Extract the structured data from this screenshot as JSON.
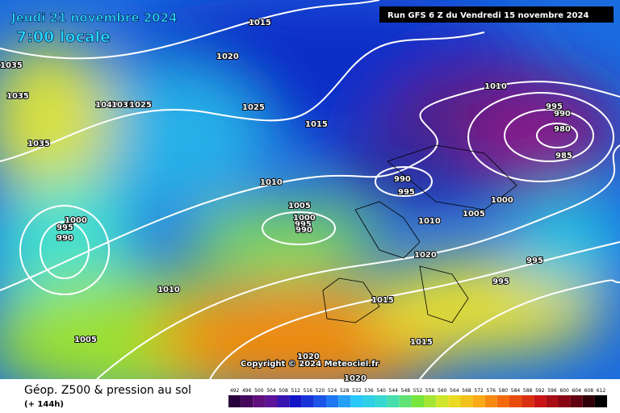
{
  "header": {
    "date": "Jeudi 21 novembre 2024",
    "time": "7:00 locale",
    "run": "Run GFS 6 Z du Vendredi 15 novembre 2024"
  },
  "isobars": [
    "1015",
    "1020",
    "1035",
    "1035",
    "1040",
    "1035",
    "1025",
    "1025",
    "1035",
    "1015",
    "1010",
    "995",
    "990",
    "980",
    "985",
    "990",
    "995",
    "1010",
    "1005",
    "1000",
    "995",
    "990",
    "1000",
    "1005",
    "1010",
    "1020",
    "995",
    "995",
    "1000",
    "995",
    "990",
    "1010",
    "1015",
    "1005",
    "1015",
    "1020",
    "1020"
  ],
  "copyright": "Copyright © 2024 Meteociel.fr",
  "footer": {
    "title": "Géop. Z500 & pression au sol",
    "step": "(+ 144h)"
  },
  "scale": [
    492,
    496,
    500,
    504,
    508,
    512,
    516,
    520,
    524,
    528,
    532,
    536,
    540,
    544,
    548,
    552,
    556,
    560,
    564,
    568,
    572,
    576,
    580,
    584,
    588,
    592,
    596,
    600,
    604,
    608,
    612
  ]
}
